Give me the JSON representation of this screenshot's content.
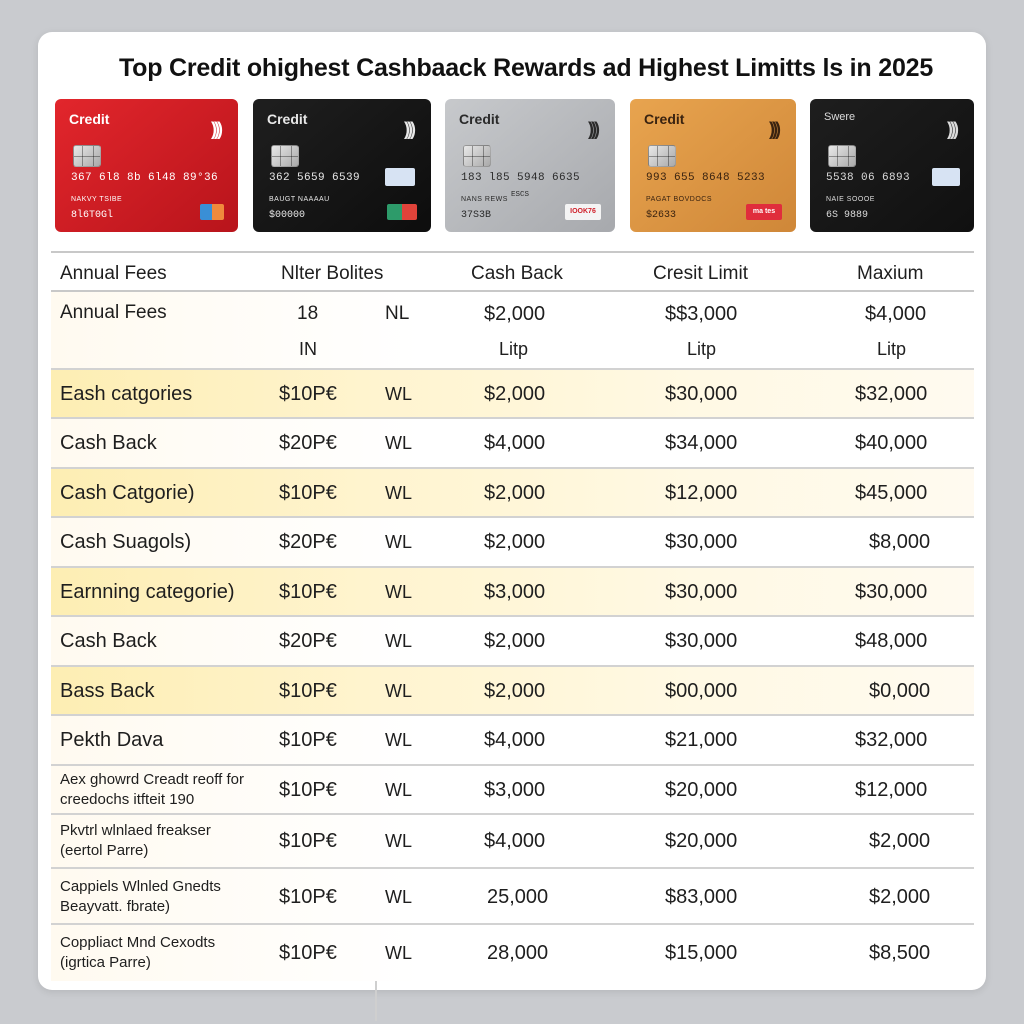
{
  "title": "Top Credit ohighest Cashbaack Rewards ad Highest Limitts ls in 2025",
  "cards": [
    {
      "name": "Credit",
      "number": "367  6l8  8b  6l48  89°36",
      "holder": "NAKVY     TSIBE",
      "mid": "",
      "exp": "8l6T0Gl",
      "brand": ""
    },
    {
      "name": "Credit",
      "number": "362  5659  6539",
      "holder": "BAUGT    NAAAAU",
      "mid": "",
      "exp": "$00000",
      "brand": ""
    },
    {
      "name": "Credit",
      "number": "183  l85  5948  6635",
      "holder": "NANS   REWS",
      "mid": "ESCS",
      "exp": "37S3B",
      "brand": "IOOK76"
    },
    {
      "name": "Credit",
      "number": "993  655  8648  5233",
      "holder": "PAGAT  BOVDOCS",
      "mid": "",
      "exp": "$2633",
      "brand": "ma tes"
    },
    {
      "name": "Swere",
      "number": "5538  06  6893",
      "holder": "NAIE   SOOOE",
      "mid": "",
      "exp": "6S  9889",
      "brand": ""
    }
  ],
  "table": {
    "headers": [
      "Annual Fees",
      "Nlter Bolites",
      "Cash Back",
      "Cresit Limit",
      "Maxium"
    ],
    "first_row": {
      "name": "Annual Fees",
      "fee": "18",
      "fee2": "IN",
      "nl": "NL",
      "cash": "$2,000",
      "cash_sub": "Litp",
      "limit": "$$3,000",
      "limit_sub": "Litp",
      "max": "$4,000",
      "max_sub": "Litp"
    },
    "rows": [
      {
        "name": "Eash catgories",
        "name2": "",
        "fee": "$10P€",
        "nl": "WL",
        "cash": "$2,000",
        "limit": "$30,000",
        "max": "$32,000"
      },
      {
        "name": "Cash Back",
        "name2": "",
        "fee": "$20P€",
        "nl": "WL",
        "cash": "$4,000",
        "limit": "$34,000",
        "max": "$40,000"
      },
      {
        "name": "Cash Catgorie)",
        "name2": "",
        "fee": "$10P€",
        "nl": "WL",
        "cash": "$2,000",
        "limit": "$12,000",
        "max": "$45,000"
      },
      {
        "name": "Cash Suagols)",
        "name2": "",
        "fee": "$20P€",
        "nl": "WL",
        "cash": "$2,000",
        "limit": "$30,000",
        "max": "$8,000"
      },
      {
        "name": "Earnning categorie)",
        "name2": "",
        "fee": "$10P€",
        "nl": "WL",
        "cash": "$3,000",
        "limit": "$30,000",
        "max": "$30,000"
      },
      {
        "name": "Cash Back",
        "name2": "",
        "fee": "$20P€",
        "nl": "WL",
        "cash": "$2,000",
        "limit": "$30,000",
        "max": "$48,000"
      },
      {
        "name": "Bass Back",
        "name2": "",
        "fee": "$10P€",
        "nl": "WL",
        "cash": "$2,000",
        "limit": "$00,000",
        "max": "$0,000"
      },
      {
        "name": "Pekth Dava",
        "name2": "",
        "fee": "$10P€",
        "nl": "WL",
        "cash": "$4,000",
        "limit": "$21,000",
        "max": "$32,000"
      },
      {
        "name": "Aex ghowrd Creadt reoff for",
        "name2": "creedochs itfteit 190",
        "fee": "$10P€",
        "nl": "WL",
        "cash": "$3,000",
        "limit": "$20,000",
        "max": "$12,000"
      },
      {
        "name": "Pkvtrl wlnlaed freakser",
        "name2": "(eertol Parre)",
        "fee": "$10P€",
        "nl": "WL",
        "cash": "$4,000",
        "limit": "$20,000",
        "max": "$2,000"
      },
      {
        "name": "Cappiels Wlnled Gnedts",
        "name2": "Beayvatt. fbrate)",
        "fee": "$10P€",
        "nl": "WL",
        "cash": "25,000",
        "limit": "$83,000",
        "max": "$2,000"
      },
      {
        "name": "Coppliact Mnd Cexodts",
        "name2": "(igrtica Parre)",
        "fee": "$10P€",
        "nl": "WL",
        "cash": "28,000",
        "limit": "$15,000",
        "max": "$8,500"
      }
    ]
  }
}
